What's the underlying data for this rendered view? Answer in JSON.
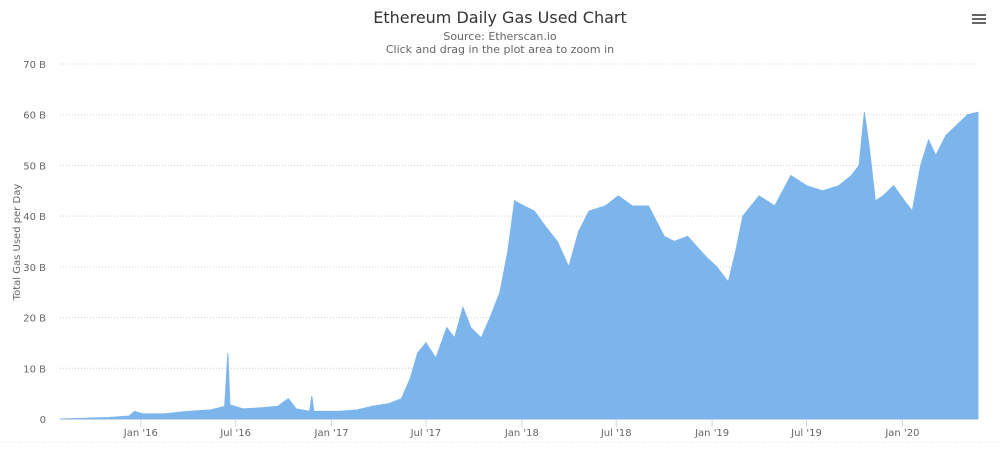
{
  "chart_data": {
    "type": "area",
    "title": "Ethereum Daily Gas Used Chart",
    "subtitle": "Source: Etherscan.io",
    "instruction": "Click and drag in the plot area to zoom in",
    "ylabel": "Total Gas Used per Day",
    "xlabel": "",
    "ylim": [
      0,
      70
    ],
    "xlim": [
      "2015-07-30",
      "2020-05-25"
    ],
    "y_ticks": [
      "0",
      "10 B",
      "20 B",
      "30 B",
      "40 B",
      "50 B",
      "60 B",
      "70 B"
    ],
    "x_ticks": [
      {
        "date": "2016-01-01",
        "label": "Jan '16"
      },
      {
        "date": "2016-07-01",
        "label": "Jul '16"
      },
      {
        "date": "2017-01-01",
        "label": "Jan '17"
      },
      {
        "date": "2017-07-01",
        "label": "Jul '17"
      },
      {
        "date": "2018-01-01",
        "label": "Jan '18"
      },
      {
        "date": "2018-07-01",
        "label": "Jul '18"
      },
      {
        "date": "2019-01-01",
        "label": "Jan '19"
      },
      {
        "date": "2019-07-01",
        "label": "Jul '19"
      },
      {
        "date": "2020-01-01",
        "label": "Jan '20"
      }
    ],
    "grid": true,
    "legend": "none",
    "color": "#7cb5ec",
    "unit": "B",
    "series": [
      {
        "points": [
          [
            "2015-07-30",
            0.0
          ],
          [
            "2015-09-01",
            0.1
          ],
          [
            "2015-11-01",
            0.3
          ],
          [
            "2015-12-10",
            0.6
          ],
          [
            "2015-12-20",
            1.5
          ],
          [
            "2016-01-05",
            1.0
          ],
          [
            "2016-02-15",
            1.0
          ],
          [
            "2016-04-01",
            1.5
          ],
          [
            "2016-05-15",
            1.8
          ],
          [
            "2016-06-10",
            2.5
          ],
          [
            "2016-06-16",
            13.0
          ],
          [
            "2016-06-20",
            2.8
          ],
          [
            "2016-07-15",
            2.0
          ],
          [
            "2016-08-20",
            2.2
          ],
          [
            "2016-09-20",
            2.5
          ],
          [
            "2016-10-10",
            4.0
          ],
          [
            "2016-10-25",
            2.0
          ],
          [
            "2016-11-20",
            1.5
          ],
          [
            "2016-11-24",
            4.5
          ],
          [
            "2016-11-28",
            1.5
          ],
          [
            "2017-01-15",
            1.5
          ],
          [
            "2017-02-20",
            1.8
          ],
          [
            "2017-03-20",
            2.5
          ],
          [
            "2017-04-20",
            3.0
          ],
          [
            "2017-05-15",
            4.0
          ],
          [
            "2017-06-01",
            8.0
          ],
          [
            "2017-06-15",
            13.0
          ],
          [
            "2017-07-01",
            15.0
          ],
          [
            "2017-07-20",
            12.0
          ],
          [
            "2017-08-10",
            18.0
          ],
          [
            "2017-08-25",
            16.0
          ],
          [
            "2017-09-10",
            22.0
          ],
          [
            "2017-09-25",
            18.0
          ],
          [
            "2017-10-15",
            16.0
          ],
          [
            "2017-11-01",
            20.0
          ],
          [
            "2017-11-20",
            25.0
          ],
          [
            "2017-12-05",
            33.0
          ],
          [
            "2017-12-18",
            43.0
          ],
          [
            "2018-01-05",
            42.0
          ],
          [
            "2018-01-25",
            41.0
          ],
          [
            "2018-02-15",
            38.0
          ],
          [
            "2018-03-10",
            35.0
          ],
          [
            "2018-04-01",
            30.0
          ],
          [
            "2018-04-20",
            37.0
          ],
          [
            "2018-05-10",
            41.0
          ],
          [
            "2018-06-10",
            42.0
          ],
          [
            "2018-07-05",
            44.0
          ],
          [
            "2018-08-01",
            42.0
          ],
          [
            "2018-09-01",
            42.0
          ],
          [
            "2018-10-01",
            36.0
          ],
          [
            "2018-10-20",
            35.0
          ],
          [
            "2018-11-15",
            36.0
          ],
          [
            "2018-12-20",
            32.0
          ],
          [
            "2019-01-10",
            30.0
          ],
          [
            "2019-02-01",
            27.0
          ],
          [
            "2019-02-15",
            33.0
          ],
          [
            "2019-03-01",
            40.0
          ],
          [
            "2019-04-01",
            44.0
          ],
          [
            "2019-05-01",
            42.0
          ],
          [
            "2019-06-01",
            48.0
          ],
          [
            "2019-07-01",
            46.0
          ],
          [
            "2019-08-01",
            45.0
          ],
          [
            "2019-09-01",
            46.0
          ],
          [
            "2019-09-25",
            48.0
          ],
          [
            "2019-10-10",
            50.0
          ],
          [
            "2019-10-20",
            60.5
          ],
          [
            "2019-10-30",
            53.0
          ],
          [
            "2019-11-10",
            43.0
          ],
          [
            "2019-11-25",
            44.0
          ],
          [
            "2019-12-15",
            46.0
          ],
          [
            "2020-01-05",
            43.0
          ],
          [
            "2020-01-20",
            41.0
          ],
          [
            "2020-02-05",
            50.0
          ],
          [
            "2020-02-20",
            55.0
          ],
          [
            "2020-03-05",
            52.0
          ],
          [
            "2020-03-25",
            56.0
          ],
          [
            "2020-04-15",
            58.0
          ],
          [
            "2020-05-05",
            60.0
          ],
          [
            "2020-05-25",
            60.5
          ]
        ]
      }
    ]
  },
  "toolbar": {
    "menu_icon": "hamburger-menu-icon"
  }
}
